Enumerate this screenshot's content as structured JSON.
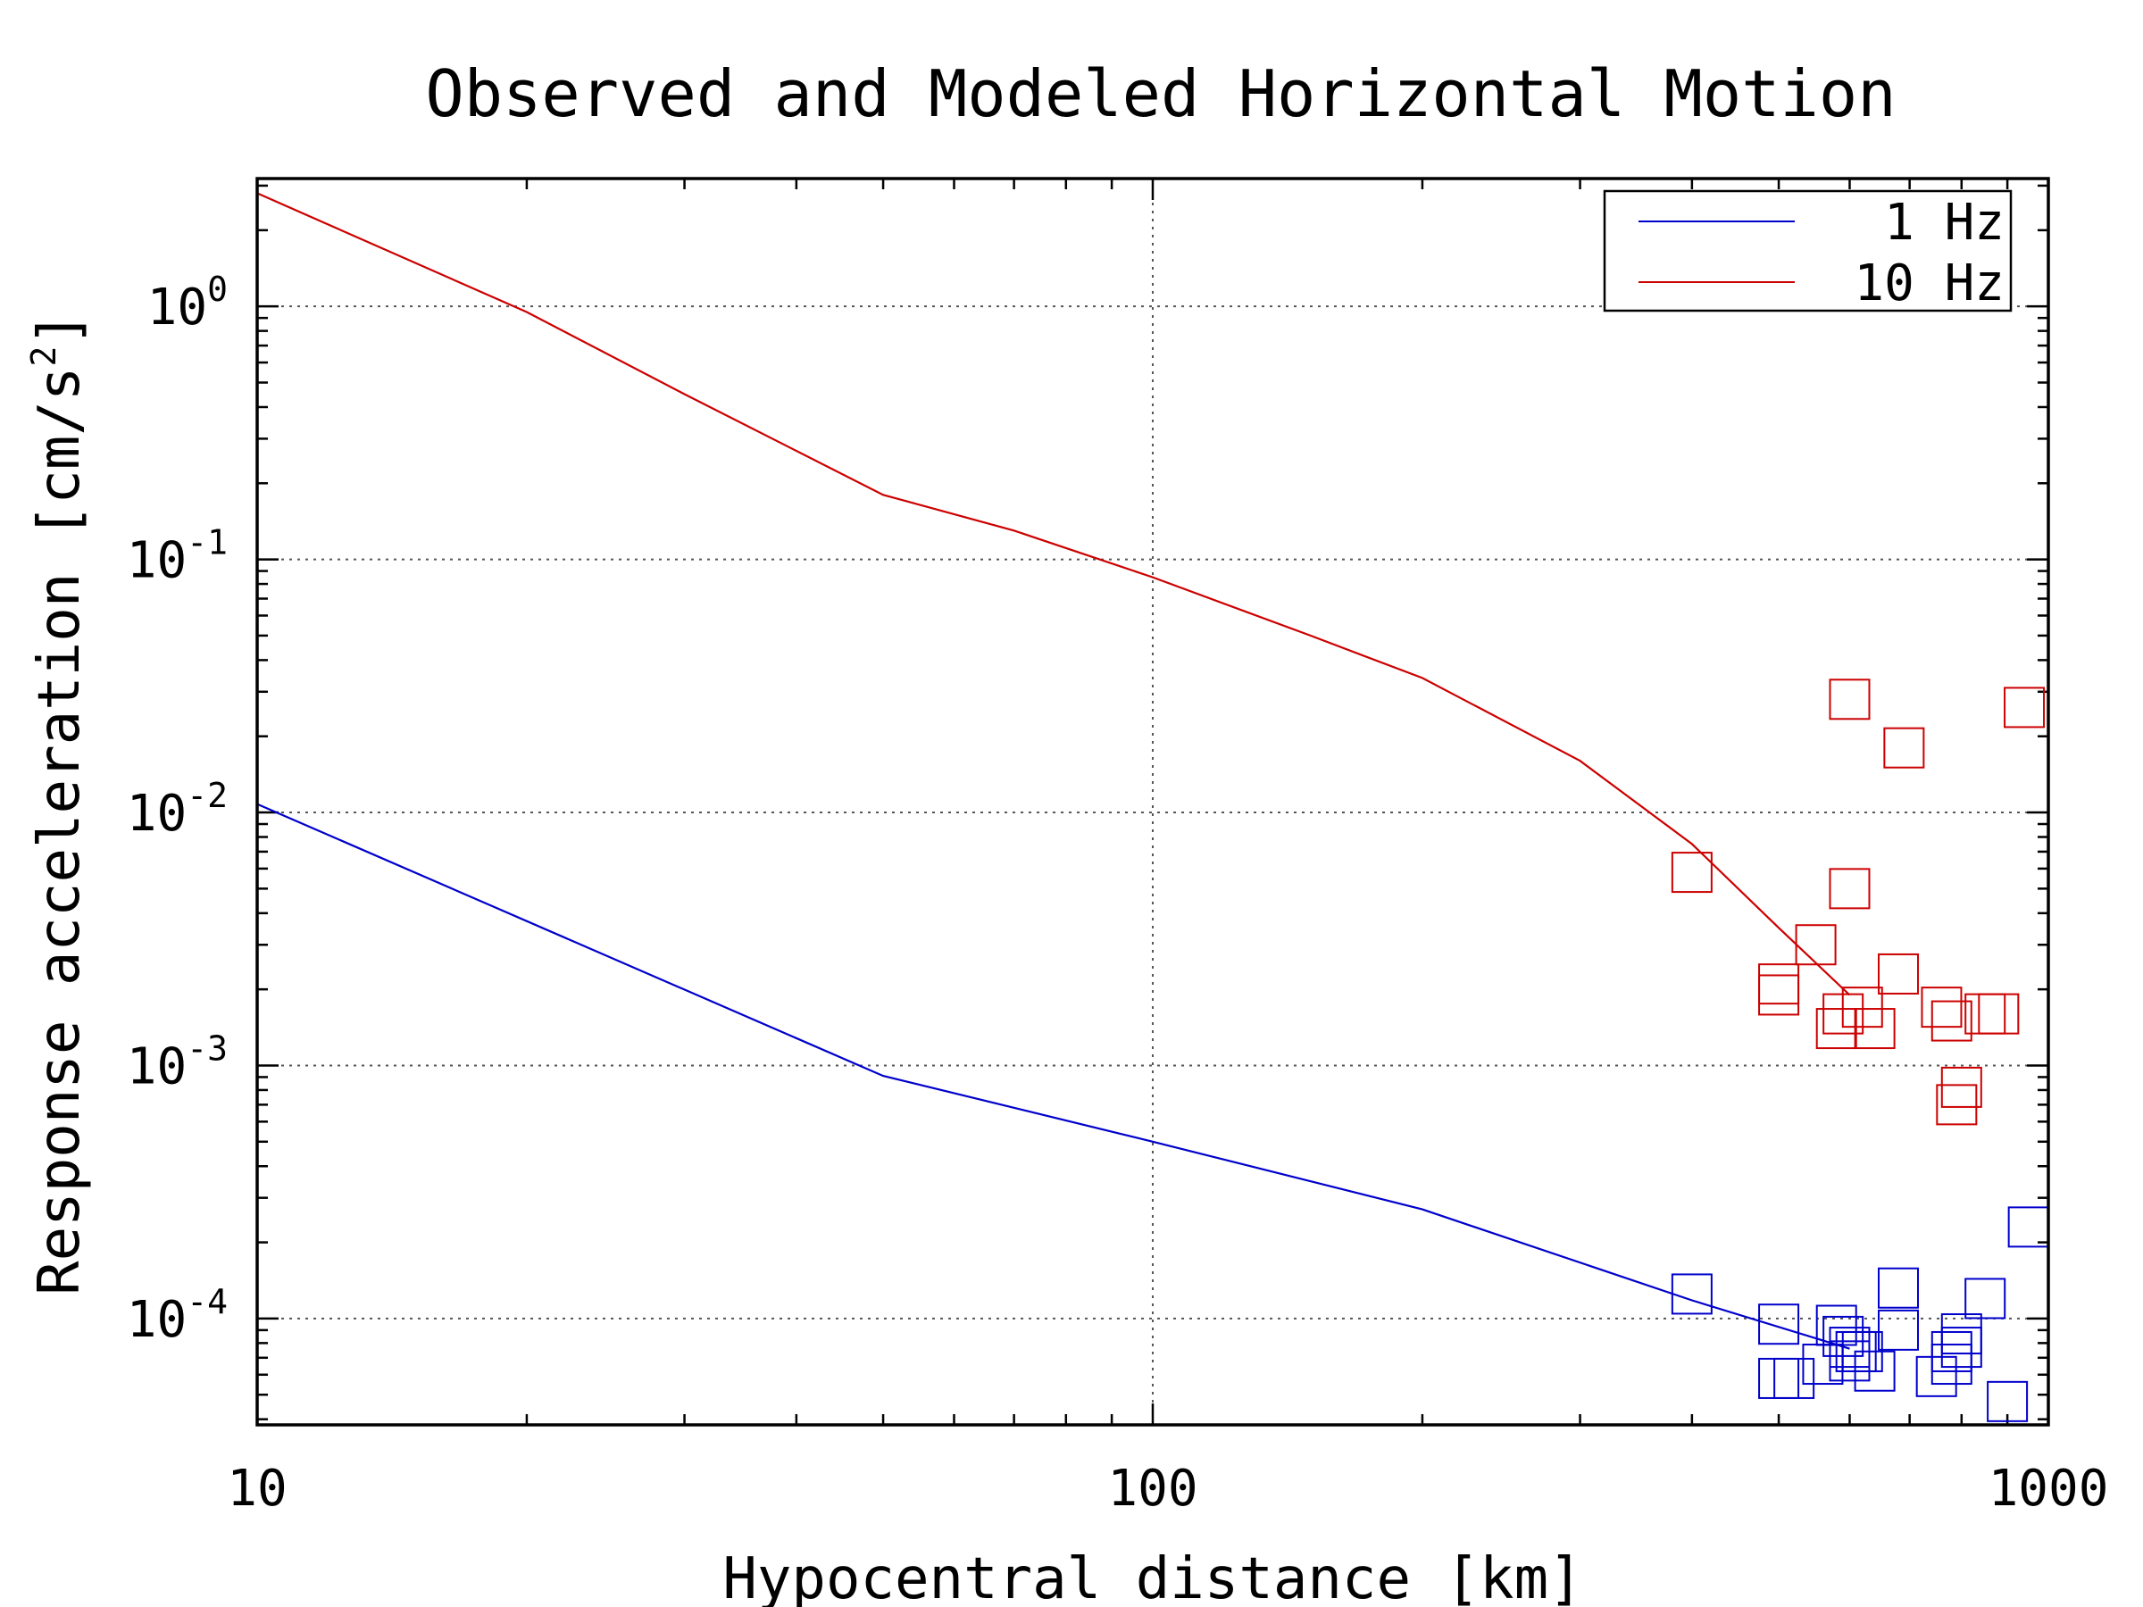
{
  "chart_data": {
    "type": "scatter",
    "title": "Observed and Modeled Horizontal Motion",
    "xlabel": "Hypocentral distance [km]",
    "ylabel": "Response acceleration [cm/s",
    "ylabel_superscript": "2",
    "ylabel_suffix": "]",
    "xscale": "log",
    "yscale": "log",
    "xlim": [
      10,
      1000
    ],
    "ylim": [
      3.8e-05,
      3.2
    ],
    "grid": true,
    "legend_placement": "top-right",
    "x_ticks": [
      {
        "value": 10,
        "label": "10"
      },
      {
        "value": 100,
        "label": "100"
      },
      {
        "value": 1000,
        "label": "1000"
      }
    ],
    "y_ticks": [
      {
        "value": 1,
        "base": "10",
        "exp": "0"
      },
      {
        "value": 0.1,
        "base": "10",
        "exp": "-1"
      },
      {
        "value": 0.01,
        "base": "10",
        "exp": "-2"
      },
      {
        "value": 0.001,
        "base": "10",
        "exp": "-3"
      },
      {
        "value": 0.0001,
        "base": "10",
        "exp": "-4"
      }
    ],
    "series": [
      {
        "name": "1 Hz",
        "color": "#0000cc",
        "line": {
          "x": [
            10,
            50,
            100,
            200,
            400,
            600
          ],
          "y": [
            0.0108,
            0.00091,
            0.0005,
            0.00027,
            0.000118,
            7.6e-05
          ]
        },
        "points": {
          "x": [
            400,
            500,
            520,
            500,
            560,
            580,
            590,
            600,
            610,
            620,
            640,
            600,
            680,
            680,
            750,
            780,
            800,
            800,
            850,
            900,
            950,
            780
          ],
          "y": [
            0.000125,
            9.5e-05,
            5.8e-05,
            5.8e-05,
            6.6e-05,
            9.4e-05,
            8.5e-05,
            7.7e-05,
            7.4e-05,
            7.4e-05,
            6.2e-05,
            6.8e-05,
            0.000132,
            9e-05,
            5.9e-05,
            6.6e-05,
            7.7e-05,
            8.7e-05,
            0.00012,
            4.7e-05,
            0.00023,
            7.4e-05
          ]
        }
      },
      {
        "name": "10 Hz",
        "color": "#cc0000",
        "line": {
          "x": [
            10,
            20,
            30,
            50,
            70,
            100,
            150,
            200,
            300,
            400,
            500,
            600
          ],
          "y": [
            2.8,
            0.95,
            0.45,
            0.18,
            0.13,
            0.085,
            0.05,
            0.034,
            0.016,
            0.0075,
            0.0035,
            0.0019
          ]
        },
        "points": {
          "x": [
            400,
            500,
            500,
            550,
            600,
            580,
            590,
            620,
            640,
            680,
            760,
            780,
            800,
            850,
            880,
            940,
            600,
            690,
            790
          ],
          "y": [
            0.0058,
            0.0021,
            0.0019,
            0.003,
            0.005,
            0.0014,
            0.0016,
            0.0017,
            0.0014,
            0.0023,
            0.0017,
            0.0015,
            0.00082,
            0.0016,
            0.0016,
            0.026,
            0.028,
            0.018,
            0.0007
          ]
        }
      }
    ],
    "legend": [
      {
        "label": "1 Hz"
      },
      {
        "label": "10 Hz"
      }
    ]
  }
}
